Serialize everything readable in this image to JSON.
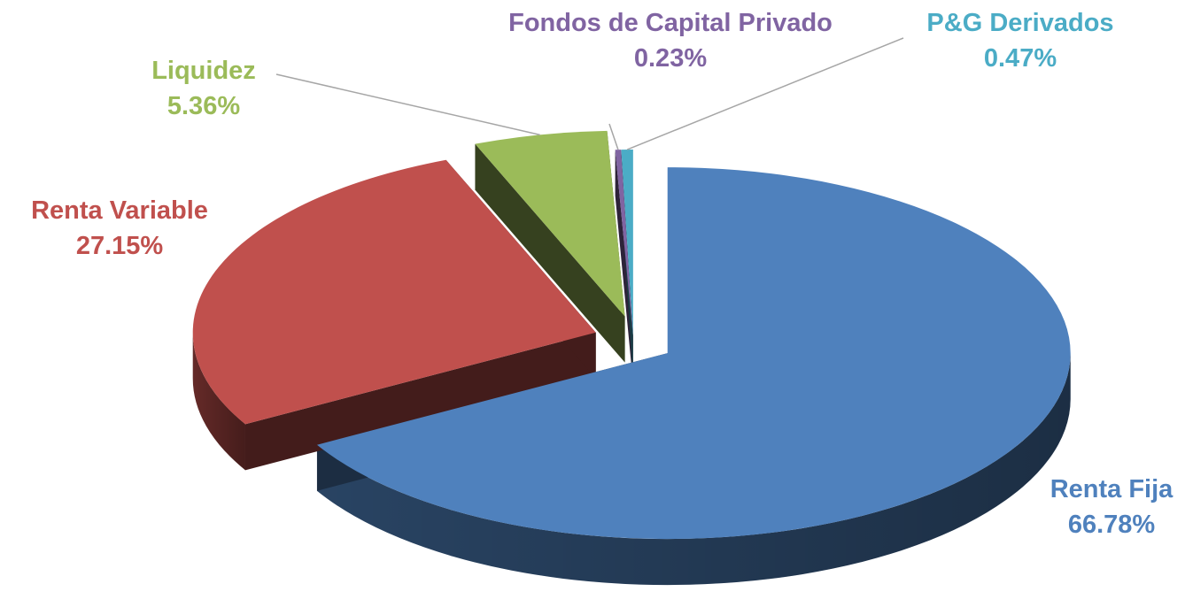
{
  "chart_data": {
    "type": "pie",
    "categories": [
      "Renta Fija",
      "Renta Variable",
      "Liquidez",
      "Fondos de Capital Privado",
      "P&G Derivados"
    ],
    "values": [
      66.78,
      27.15,
      5.36,
      0.23,
      0.47
    ],
    "value_labels": [
      "66.78%",
      "27.15%",
      "5.36%",
      "0.23%",
      "0.47%"
    ],
    "colors": [
      "#4f81bd",
      "#c0504d",
      "#9bbb59",
      "#8064a2",
      "#4bacc6"
    ]
  }
}
